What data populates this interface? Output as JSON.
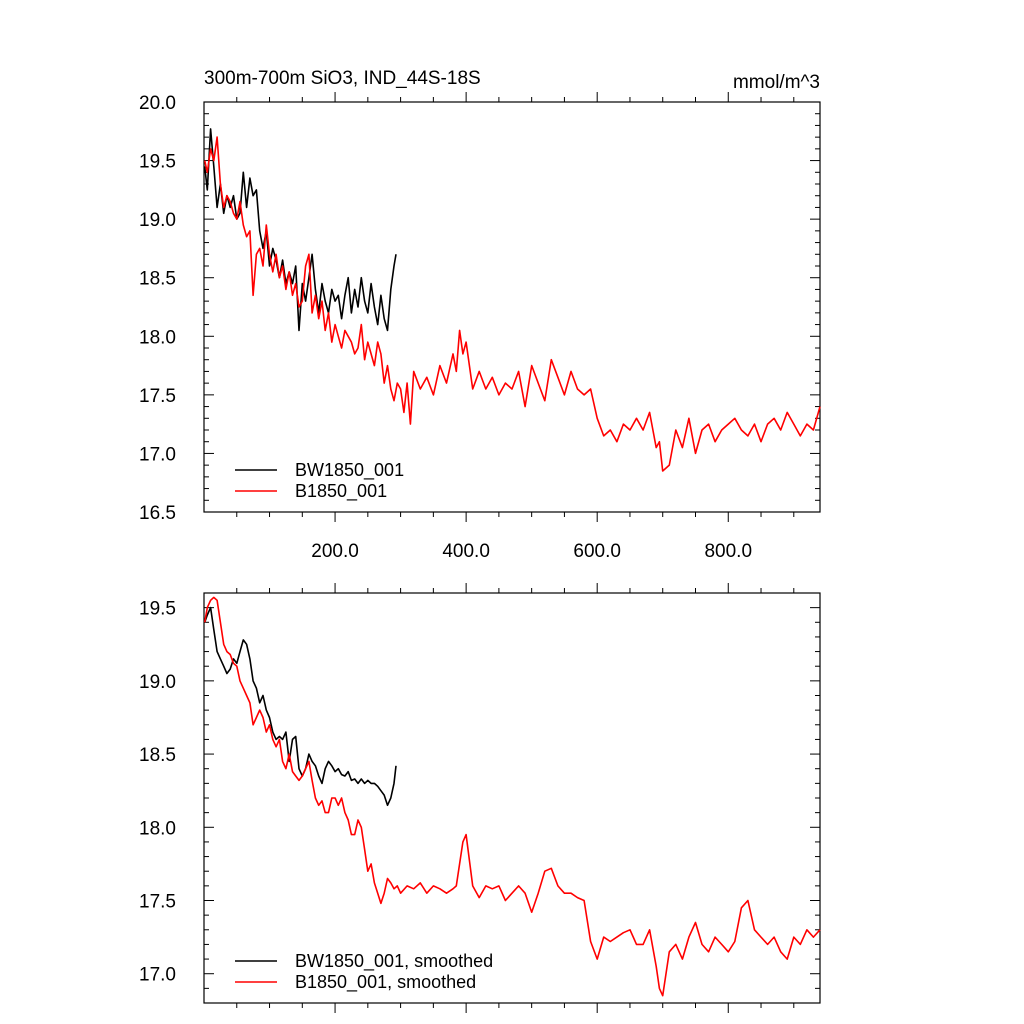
{
  "figure": {
    "title_left": "300m-700m SiO3, IND_44S-18S",
    "title_right": "mmol/m^3"
  },
  "chart_data": [
    {
      "type": "line",
      "title": "300m-700m SiO3, IND_44S-18S",
      "units": "mmol/m^3",
      "xlim": [
        0,
        940
      ],
      "ylim": [
        16.5,
        20.0
      ],
      "x_ticks": [
        200,
        400,
        600,
        800
      ],
      "x_tick_labels": [
        "200.0",
        "400.0",
        "600.0",
        "800.0"
      ],
      "y_ticks": [
        16.5,
        17.0,
        17.5,
        18.0,
        18.5,
        19.0,
        19.5,
        20.0
      ],
      "y_tick_labels": [
        "16.5",
        "17.0",
        "17.5",
        "18.0",
        "18.5",
        "19.0",
        "19.5",
        "20.0"
      ],
      "legend_position": "bottom-left",
      "series": [
        {
          "name": "BW1850_001",
          "color": "#000000",
          "x": [
            1,
            5,
            10,
            15,
            20,
            25,
            30,
            35,
            40,
            45,
            50,
            55,
            60,
            65,
            70,
            75,
            80,
            85,
            90,
            95,
            100,
            105,
            110,
            115,
            120,
            125,
            130,
            135,
            140,
            145,
            150,
            155,
            160,
            165,
            170,
            175,
            180,
            185,
            190,
            195,
            200,
            205,
            210,
            215,
            220,
            225,
            230,
            235,
            240,
            245,
            250,
            255,
            260,
            265,
            270,
            275,
            280,
            285,
            290,
            293
          ],
          "y": [
            19.45,
            19.25,
            19.77,
            19.45,
            19.1,
            19.3,
            19.05,
            19.2,
            19.1,
            19.2,
            19.0,
            19.05,
            19.4,
            19.1,
            19.35,
            19.2,
            19.25,
            18.9,
            18.75,
            18.9,
            18.6,
            18.75,
            18.65,
            18.5,
            18.65,
            18.45,
            18.55,
            18.45,
            18.6,
            18.05,
            18.45,
            18.3,
            18.5,
            18.7,
            18.4,
            18.2,
            18.45,
            18.3,
            18.2,
            18.4,
            18.3,
            18.35,
            18.15,
            18.35,
            18.5,
            18.2,
            18.4,
            18.25,
            18.5,
            18.3,
            18.2,
            18.45,
            18.25,
            18.1,
            18.35,
            18.15,
            18.05,
            18.4,
            18.6,
            18.7
          ]
        },
        {
          "name": "B1850_001",
          "color": "#ff0000",
          "x": [
            1,
            5,
            10,
            15,
            20,
            25,
            30,
            35,
            40,
            45,
            50,
            55,
            60,
            65,
            70,
            75,
            80,
            85,
            90,
            95,
            100,
            105,
            110,
            115,
            120,
            125,
            130,
            135,
            140,
            145,
            150,
            155,
            160,
            165,
            170,
            175,
            180,
            185,
            190,
            195,
            200,
            205,
            210,
            215,
            220,
            225,
            230,
            235,
            240,
            245,
            250,
            255,
            260,
            265,
            270,
            275,
            280,
            285,
            290,
            295,
            300,
            305,
            310,
            315,
            320,
            330,
            340,
            350,
            360,
            370,
            380,
            385,
            390,
            395,
            400,
            410,
            420,
            430,
            440,
            450,
            460,
            470,
            480,
            490,
            500,
            510,
            520,
            530,
            540,
            550,
            560,
            570,
            580,
            590,
            600,
            610,
            620,
            630,
            640,
            650,
            660,
            670,
            680,
            690,
            695,
            700,
            710,
            720,
            730,
            740,
            750,
            760,
            770,
            780,
            790,
            800,
            810,
            820,
            830,
            840,
            850,
            860,
            870,
            880,
            890,
            900,
            910,
            920,
            930,
            940
          ],
          "y": [
            19.5,
            19.4,
            19.6,
            19.5,
            19.7,
            19.3,
            19.1,
            19.2,
            19.15,
            19.05,
            19.0,
            19.15,
            18.95,
            18.85,
            18.9,
            18.35,
            18.7,
            18.75,
            18.6,
            18.95,
            18.7,
            18.55,
            18.7,
            18.5,
            18.6,
            18.4,
            18.55,
            18.35,
            18.45,
            18.25,
            18.3,
            18.6,
            18.7,
            18.2,
            18.35,
            18.15,
            18.3,
            18.05,
            18.2,
            17.95,
            18.1,
            18.0,
            17.9,
            18.05,
            18.0,
            17.95,
            17.85,
            17.9,
            18.1,
            17.8,
            17.95,
            17.85,
            17.75,
            17.95,
            17.85,
            17.6,
            17.75,
            17.55,
            17.45,
            17.6,
            17.55,
            17.35,
            17.6,
            17.25,
            17.7,
            17.55,
            17.65,
            17.5,
            17.75,
            17.6,
            17.85,
            17.7,
            18.05,
            17.85,
            17.95,
            17.55,
            17.7,
            17.55,
            17.65,
            17.5,
            17.6,
            17.55,
            17.7,
            17.4,
            17.75,
            17.6,
            17.45,
            17.8,
            17.65,
            17.5,
            17.7,
            17.55,
            17.5,
            17.55,
            17.3,
            17.15,
            17.2,
            17.1,
            17.25,
            17.2,
            17.3,
            17.2,
            17.35,
            17.05,
            17.1,
            16.85,
            16.9,
            17.2,
            17.05,
            17.3,
            17.0,
            17.2,
            17.25,
            17.1,
            17.2,
            17.25,
            17.3,
            17.2,
            17.15,
            17.25,
            17.1,
            17.25,
            17.3,
            17.2,
            17.35,
            17.25,
            17.15,
            17.25,
            17.2,
            17.4
          ]
        }
      ]
    },
    {
      "type": "line",
      "xlim": [
        0,
        940
      ],
      "ylim": [
        16.8,
        19.6
      ],
      "x_ticks": [
        200,
        400,
        600,
        800
      ],
      "y_ticks": [
        17.0,
        17.5,
        18.0,
        18.5,
        19.0,
        19.5
      ],
      "y_tick_labels": [
        "17.0",
        "17.5",
        "18.0",
        "18.5",
        "19.0",
        "19.5"
      ],
      "legend_position": "bottom-left",
      "series": [
        {
          "name": "BW1850_001, smoothed",
          "color": "#000000",
          "x": [
            1,
            5,
            10,
            15,
            20,
            25,
            30,
            35,
            40,
            45,
            50,
            55,
            60,
            65,
            70,
            75,
            80,
            85,
            90,
            95,
            100,
            105,
            110,
            115,
            120,
            125,
            130,
            135,
            140,
            145,
            150,
            155,
            160,
            165,
            170,
            175,
            180,
            185,
            190,
            195,
            200,
            205,
            210,
            215,
            220,
            225,
            230,
            235,
            240,
            245,
            250,
            255,
            260,
            265,
            270,
            275,
            280,
            285,
            290,
            293
          ],
          "y": [
            19.4,
            19.45,
            19.5,
            19.35,
            19.2,
            19.15,
            19.1,
            19.05,
            19.08,
            19.15,
            19.12,
            19.2,
            19.28,
            19.25,
            19.15,
            19.0,
            18.95,
            18.85,
            18.9,
            18.8,
            18.75,
            18.65,
            18.6,
            18.62,
            18.6,
            18.65,
            18.45,
            18.6,
            18.62,
            18.4,
            18.35,
            18.4,
            18.5,
            18.45,
            18.42,
            18.35,
            18.3,
            18.4,
            18.45,
            18.42,
            18.38,
            18.4,
            18.36,
            18.35,
            18.38,
            18.32,
            18.33,
            18.3,
            18.33,
            18.3,
            18.32,
            18.3,
            18.3,
            18.28,
            18.25,
            18.22,
            18.15,
            18.2,
            18.3,
            18.42
          ]
        },
        {
          "name": "B1850_001, smoothed",
          "color": "#ff0000",
          "x": [
            1,
            5,
            10,
            15,
            20,
            25,
            30,
            35,
            40,
            45,
            50,
            55,
            60,
            65,
            70,
            75,
            80,
            85,
            90,
            95,
            100,
            105,
            110,
            115,
            120,
            125,
            130,
            135,
            140,
            145,
            150,
            155,
            160,
            165,
            170,
            175,
            180,
            185,
            190,
            195,
            200,
            205,
            210,
            215,
            220,
            225,
            230,
            235,
            240,
            245,
            250,
            255,
            260,
            265,
            270,
            275,
            280,
            285,
            290,
            295,
            300,
            310,
            320,
            330,
            340,
            350,
            360,
            370,
            380,
            385,
            390,
            395,
            400,
            410,
            420,
            430,
            440,
            450,
            460,
            470,
            480,
            490,
            500,
            510,
            520,
            530,
            540,
            550,
            560,
            570,
            580,
            590,
            600,
            610,
            620,
            630,
            640,
            650,
            660,
            670,
            680,
            690,
            695,
            700,
            710,
            720,
            730,
            740,
            750,
            760,
            770,
            780,
            790,
            800,
            810,
            820,
            830,
            840,
            850,
            860,
            870,
            880,
            890,
            900,
            910,
            920,
            930,
            940
          ],
          "y": [
            19.4,
            19.5,
            19.55,
            19.57,
            19.55,
            19.4,
            19.25,
            19.2,
            19.18,
            19.12,
            19.1,
            19.0,
            18.95,
            18.9,
            18.85,
            18.7,
            18.75,
            18.8,
            18.75,
            18.65,
            18.7,
            18.6,
            18.55,
            18.6,
            18.45,
            18.4,
            18.5,
            18.38,
            18.35,
            18.32,
            18.35,
            18.4,
            18.45,
            18.32,
            18.2,
            18.15,
            18.18,
            18.1,
            18.1,
            18.2,
            18.2,
            18.15,
            18.2,
            18.1,
            18.05,
            17.95,
            17.95,
            18.05,
            18.0,
            17.85,
            17.7,
            17.75,
            17.62,
            17.55,
            17.48,
            17.55,
            17.65,
            17.62,
            17.58,
            17.6,
            17.55,
            17.6,
            17.58,
            17.62,
            17.55,
            17.6,
            17.58,
            17.55,
            17.58,
            17.6,
            17.75,
            17.9,
            17.95,
            17.6,
            17.52,
            17.6,
            17.58,
            17.6,
            17.5,
            17.55,
            17.6,
            17.55,
            17.42,
            17.55,
            17.7,
            17.72,
            17.6,
            17.55,
            17.55,
            17.52,
            17.5,
            17.22,
            17.1,
            17.25,
            17.22,
            17.25,
            17.28,
            17.3,
            17.2,
            17.2,
            17.3,
            17.05,
            16.9,
            16.85,
            17.15,
            17.2,
            17.1,
            17.25,
            17.35,
            17.2,
            17.15,
            17.25,
            17.2,
            17.15,
            17.22,
            17.45,
            17.5,
            17.3,
            17.25,
            17.2,
            17.25,
            17.15,
            17.1,
            17.25,
            17.2,
            17.3,
            17.25,
            17.3
          ]
        }
      ]
    }
  ]
}
